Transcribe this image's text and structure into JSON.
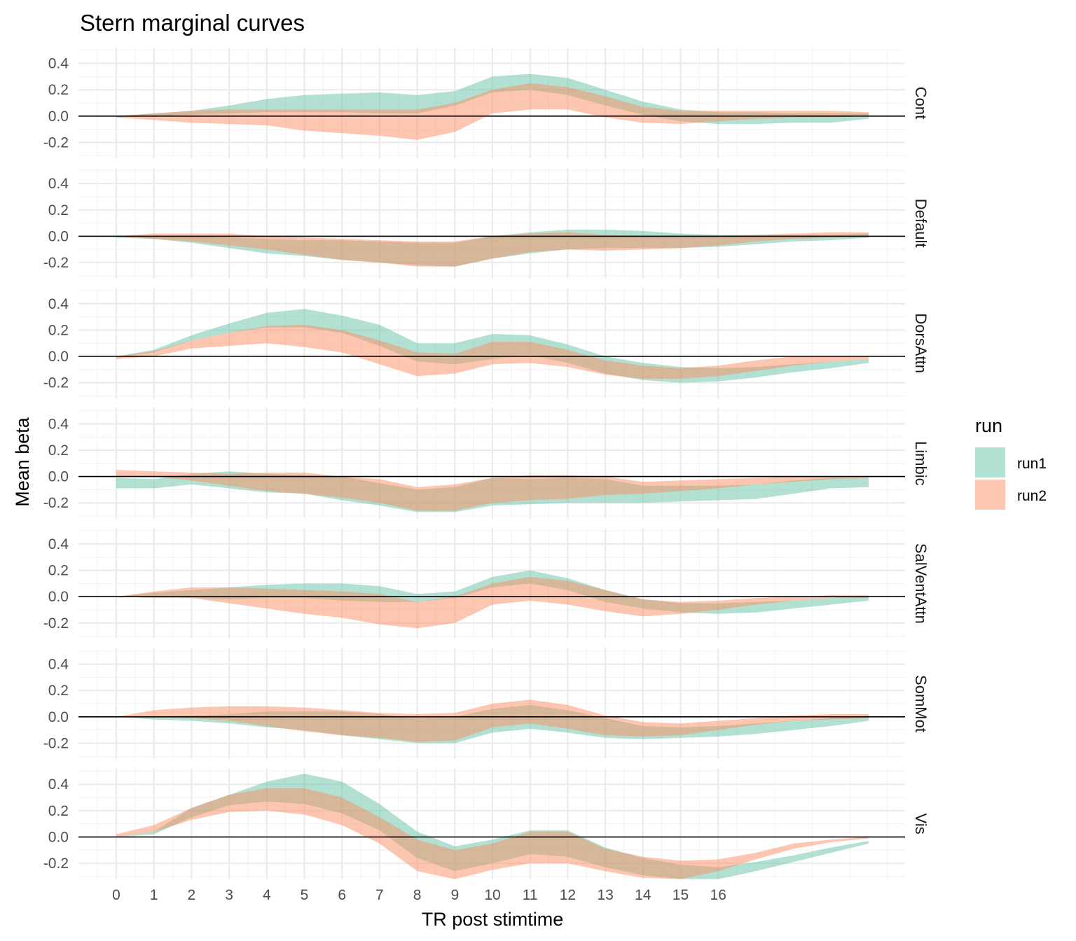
{
  "chart_data": {
    "type": "area",
    "title": "Stern marginal curves",
    "xlabel": "TR post stimtime",
    "ylabel": "Mean beta",
    "xlim": [
      -1,
      20.9
    ],
    "ylim": [
      -0.32,
      0.52
    ],
    "x_ticks": [
      0,
      1,
      2,
      3,
      4,
      5,
      6,
      7,
      8,
      9,
      10,
      11,
      12,
      13,
      14,
      15,
      16
    ],
    "y_ticks": [
      -0.2,
      0.0,
      0.2,
      0.4
    ],
    "y_tick_labels": [
      "-0.2",
      "0.0",
      "0.2",
      "0.4"
    ],
    "x": [
      0,
      1,
      2,
      3,
      4,
      5,
      6,
      7,
      8,
      9,
      10,
      11,
      12,
      13,
      14,
      15,
      16,
      17,
      18,
      19,
      20
    ],
    "reference_line": 0,
    "grid": true,
    "legend": {
      "title": "run",
      "position": "right",
      "entries": [
        "run1",
        "run2"
      ]
    },
    "colors": {
      "run1": "#66c2a5",
      "run2": "#fc8d62",
      "band_opacity": 0.5
    },
    "panels": [
      {
        "name": "Cont",
        "series": [
          {
            "name": "run1",
            "lower": [
              -0.01,
              0.0,
              0.01,
              0.02,
              0.03,
              0.03,
              0.03,
              0.02,
              0.02,
              0.08,
              0.18,
              0.2,
              0.16,
              0.08,
              0.01,
              -0.04,
              -0.06,
              -0.06,
              -0.05,
              -0.05,
              -0.02
            ],
            "upper": [
              0.0,
              0.02,
              0.04,
              0.08,
              0.13,
              0.16,
              0.17,
              0.18,
              0.16,
              0.19,
              0.3,
              0.32,
              0.29,
              0.2,
              0.11,
              0.05,
              0.03,
              0.03,
              0.02,
              0.02,
              0.02
            ]
          },
          {
            "name": "run2",
            "lower": [
              -0.01,
              -0.03,
              -0.05,
              -0.06,
              -0.07,
              -0.11,
              -0.13,
              -0.15,
              -0.18,
              -0.12,
              0.02,
              0.05,
              0.05,
              -0.01,
              -0.05,
              -0.06,
              -0.04,
              -0.02,
              -0.01,
              -0.01,
              0.0
            ],
            "upper": [
              0.0,
              0.02,
              0.04,
              0.05,
              0.05,
              0.05,
              0.05,
              0.05,
              0.05,
              0.1,
              0.2,
              0.25,
              0.22,
              0.15,
              0.07,
              0.04,
              0.04,
              0.04,
              0.04,
              0.04,
              0.03
            ]
          }
        ]
      },
      {
        "name": "Default",
        "series": [
          {
            "name": "run1",
            "lower": [
              -0.01,
              -0.02,
              -0.05,
              -0.09,
              -0.13,
              -0.15,
              -0.18,
              -0.2,
              -0.22,
              -0.23,
              -0.17,
              -0.13,
              -0.1,
              -0.09,
              -0.09,
              -0.09,
              -0.08,
              -0.06,
              -0.04,
              -0.03,
              -0.01
            ],
            "upper": [
              0.0,
              0.0,
              0.0,
              -0.01,
              -0.02,
              -0.03,
              -0.03,
              -0.04,
              -0.05,
              -0.05,
              0.0,
              0.03,
              0.05,
              0.05,
              0.04,
              0.02,
              0.01,
              0.01,
              0.01,
              0.01,
              0.02
            ]
          },
          {
            "name": "run2",
            "lower": [
              0.0,
              -0.02,
              -0.04,
              -0.07,
              -0.1,
              -0.14,
              -0.18,
              -0.2,
              -0.23,
              -0.23,
              -0.17,
              -0.12,
              -0.1,
              -0.11,
              -0.1,
              -0.09,
              -0.07,
              -0.04,
              -0.02,
              -0.01,
              0.0
            ],
            "upper": [
              0.0,
              0.02,
              0.02,
              0.02,
              0.0,
              -0.01,
              -0.02,
              -0.03,
              -0.04,
              -0.04,
              0.0,
              0.02,
              0.03,
              0.01,
              0.0,
              0.0,
              0.0,
              0.01,
              0.02,
              0.03,
              0.03
            ]
          }
        ]
      },
      {
        "name": "DorsAttn",
        "series": [
          {
            "name": "run1",
            "lower": [
              -0.01,
              0.03,
              0.12,
              0.18,
              0.22,
              0.22,
              0.18,
              0.08,
              -0.04,
              -0.06,
              -0.02,
              0.01,
              -0.05,
              -0.13,
              -0.18,
              -0.2,
              -0.19,
              -0.16,
              -0.12,
              -0.09,
              -0.05
            ],
            "upper": [
              0.0,
              0.05,
              0.16,
              0.25,
              0.33,
              0.36,
              0.31,
              0.24,
              0.1,
              0.1,
              0.17,
              0.16,
              0.09,
              0.0,
              -0.05,
              -0.08,
              -0.09,
              -0.08,
              -0.06,
              -0.04,
              -0.02
            ]
          },
          {
            "name": "run2",
            "lower": [
              -0.02,
              0.0,
              0.06,
              0.08,
              0.1,
              0.07,
              0.03,
              -0.06,
              -0.15,
              -0.13,
              -0.06,
              -0.05,
              -0.08,
              -0.14,
              -0.17,
              -0.17,
              -0.15,
              -0.11,
              -0.07,
              -0.04,
              -0.02
            ],
            "upper": [
              0.0,
              0.04,
              0.12,
              0.18,
              0.23,
              0.24,
              0.2,
              0.12,
              0.03,
              0.02,
              0.11,
              0.11,
              0.05,
              -0.03,
              -0.07,
              -0.09,
              -0.07,
              -0.03,
              0.0,
              0.0,
              0.0
            ]
          }
        ]
      },
      {
        "name": "Limbic",
        "series": [
          {
            "name": "run1",
            "lower": [
              -0.09,
              -0.09,
              -0.06,
              -0.09,
              -0.12,
              -0.13,
              -0.18,
              -0.22,
              -0.27,
              -0.27,
              -0.22,
              -0.21,
              -0.2,
              -0.2,
              -0.2,
              -0.19,
              -0.18,
              -0.17,
              -0.13,
              -0.09,
              -0.08
            ],
            "upper": [
              -0.01,
              -0.02,
              0.02,
              0.04,
              0.02,
              0.01,
              0.0,
              -0.05,
              -0.1,
              -0.08,
              -0.01,
              -0.02,
              -0.01,
              -0.02,
              -0.07,
              -0.07,
              -0.07,
              -0.06,
              -0.03,
              -0.01,
              -0.01
            ]
          },
          {
            "name": "run2",
            "lower": [
              0.0,
              0.0,
              -0.03,
              -0.07,
              -0.11,
              -0.13,
              -0.16,
              -0.2,
              -0.26,
              -0.26,
              -0.2,
              -0.18,
              -0.17,
              -0.14,
              -0.13,
              -0.11,
              -0.09,
              -0.06,
              -0.04,
              -0.02,
              -0.01
            ],
            "upper": [
              0.05,
              0.04,
              0.03,
              0.02,
              0.03,
              0.03,
              0.0,
              -0.02,
              -0.08,
              -0.06,
              -0.01,
              0.01,
              0.01,
              0.0,
              -0.04,
              -0.03,
              -0.02,
              -0.01,
              0.0,
              0.0,
              0.0
            ]
          }
        ]
      },
      {
        "name": "SalVentAttn",
        "series": [
          {
            "name": "run1",
            "lower": [
              0.0,
              0.0,
              -0.01,
              -0.02,
              -0.01,
              -0.01,
              -0.03,
              -0.04,
              -0.04,
              -0.01,
              0.07,
              0.1,
              0.05,
              -0.04,
              -0.09,
              -0.12,
              -0.13,
              -0.12,
              -0.09,
              -0.06,
              -0.03
            ],
            "upper": [
              0.0,
              0.03,
              0.05,
              0.07,
              0.09,
              0.1,
              0.1,
              0.08,
              0.02,
              0.04,
              0.15,
              0.2,
              0.14,
              0.05,
              -0.02,
              -0.05,
              -0.05,
              -0.04,
              -0.03,
              -0.01,
              0.0
            ]
          },
          {
            "name": "run2",
            "lower": [
              0.0,
              -0.01,
              -0.01,
              -0.05,
              -0.09,
              -0.13,
              -0.16,
              -0.21,
              -0.24,
              -0.2,
              -0.06,
              -0.03,
              -0.06,
              -0.11,
              -0.15,
              -0.13,
              -0.1,
              -0.06,
              -0.03,
              -0.01,
              -0.01
            ],
            "upper": [
              0.0,
              0.04,
              0.07,
              0.07,
              0.06,
              0.05,
              0.04,
              0.02,
              -0.04,
              0.0,
              0.1,
              0.15,
              0.12,
              0.05,
              -0.02,
              -0.04,
              -0.03,
              -0.01,
              0.0,
              0.01,
              0.01
            ]
          }
        ]
      },
      {
        "name": "SomMot",
        "series": [
          {
            "name": "run1",
            "lower": [
              0.0,
              -0.02,
              -0.03,
              -0.05,
              -0.08,
              -0.1,
              -0.14,
              -0.17,
              -0.2,
              -0.2,
              -0.12,
              -0.09,
              -0.12,
              -0.16,
              -0.17,
              -0.16,
              -0.15,
              -0.13,
              -0.1,
              -0.07,
              -0.03
            ],
            "upper": [
              0.0,
              0.0,
              0.01,
              0.02,
              0.04,
              0.04,
              0.04,
              0.02,
              -0.01,
              0.0,
              0.06,
              0.09,
              0.05,
              -0.01,
              -0.07,
              -0.08,
              -0.07,
              -0.05,
              -0.03,
              -0.01,
              0.01
            ]
          },
          {
            "name": "run2",
            "lower": [
              0.0,
              0.0,
              -0.01,
              -0.03,
              -0.07,
              -0.11,
              -0.14,
              -0.16,
              -0.19,
              -0.18,
              -0.08,
              -0.05,
              -0.09,
              -0.14,
              -0.15,
              -0.14,
              -0.1,
              -0.06,
              -0.03,
              -0.02,
              -0.01
            ],
            "upper": [
              0.0,
              0.05,
              0.07,
              0.08,
              0.08,
              0.07,
              0.05,
              0.03,
              0.02,
              0.03,
              0.1,
              0.13,
              0.09,
              0.01,
              -0.04,
              -0.05,
              -0.03,
              -0.01,
              0.01,
              0.02,
              0.02
            ]
          }
        ]
      },
      {
        "name": "Vis",
        "series": [
          {
            "name": "run1",
            "lower": [
              0.0,
              0.02,
              0.15,
              0.24,
              0.27,
              0.25,
              0.18,
              0.05,
              -0.16,
              -0.26,
              -0.2,
              -0.13,
              -0.15,
              -0.23,
              -0.29,
              -0.32,
              -0.32,
              -0.26,
              -0.19,
              -0.12,
              -0.05
            ],
            "upper": [
              0.0,
              0.04,
              0.22,
              0.32,
              0.42,
              0.48,
              0.42,
              0.25,
              0.04,
              -0.07,
              -0.02,
              0.05,
              0.05,
              -0.08,
              -0.16,
              -0.21,
              -0.23,
              -0.19,
              -0.14,
              -0.08,
              -0.03
            ]
          },
          {
            "name": "run2",
            "lower": [
              0.0,
              0.04,
              0.13,
              0.19,
              0.2,
              0.17,
              0.09,
              -0.05,
              -0.26,
              -0.32,
              -0.25,
              -0.2,
              -0.2,
              -0.26,
              -0.31,
              -0.32,
              -0.26,
              -0.17,
              -0.09,
              -0.04,
              -0.01
            ],
            "upper": [
              0.02,
              0.09,
              0.22,
              0.32,
              0.37,
              0.37,
              0.3,
              0.15,
              -0.02,
              -0.1,
              -0.05,
              0.04,
              0.04,
              -0.09,
              -0.15,
              -0.18,
              -0.17,
              -0.12,
              -0.05,
              -0.02,
              0.0
            ]
          }
        ]
      }
    ]
  }
}
